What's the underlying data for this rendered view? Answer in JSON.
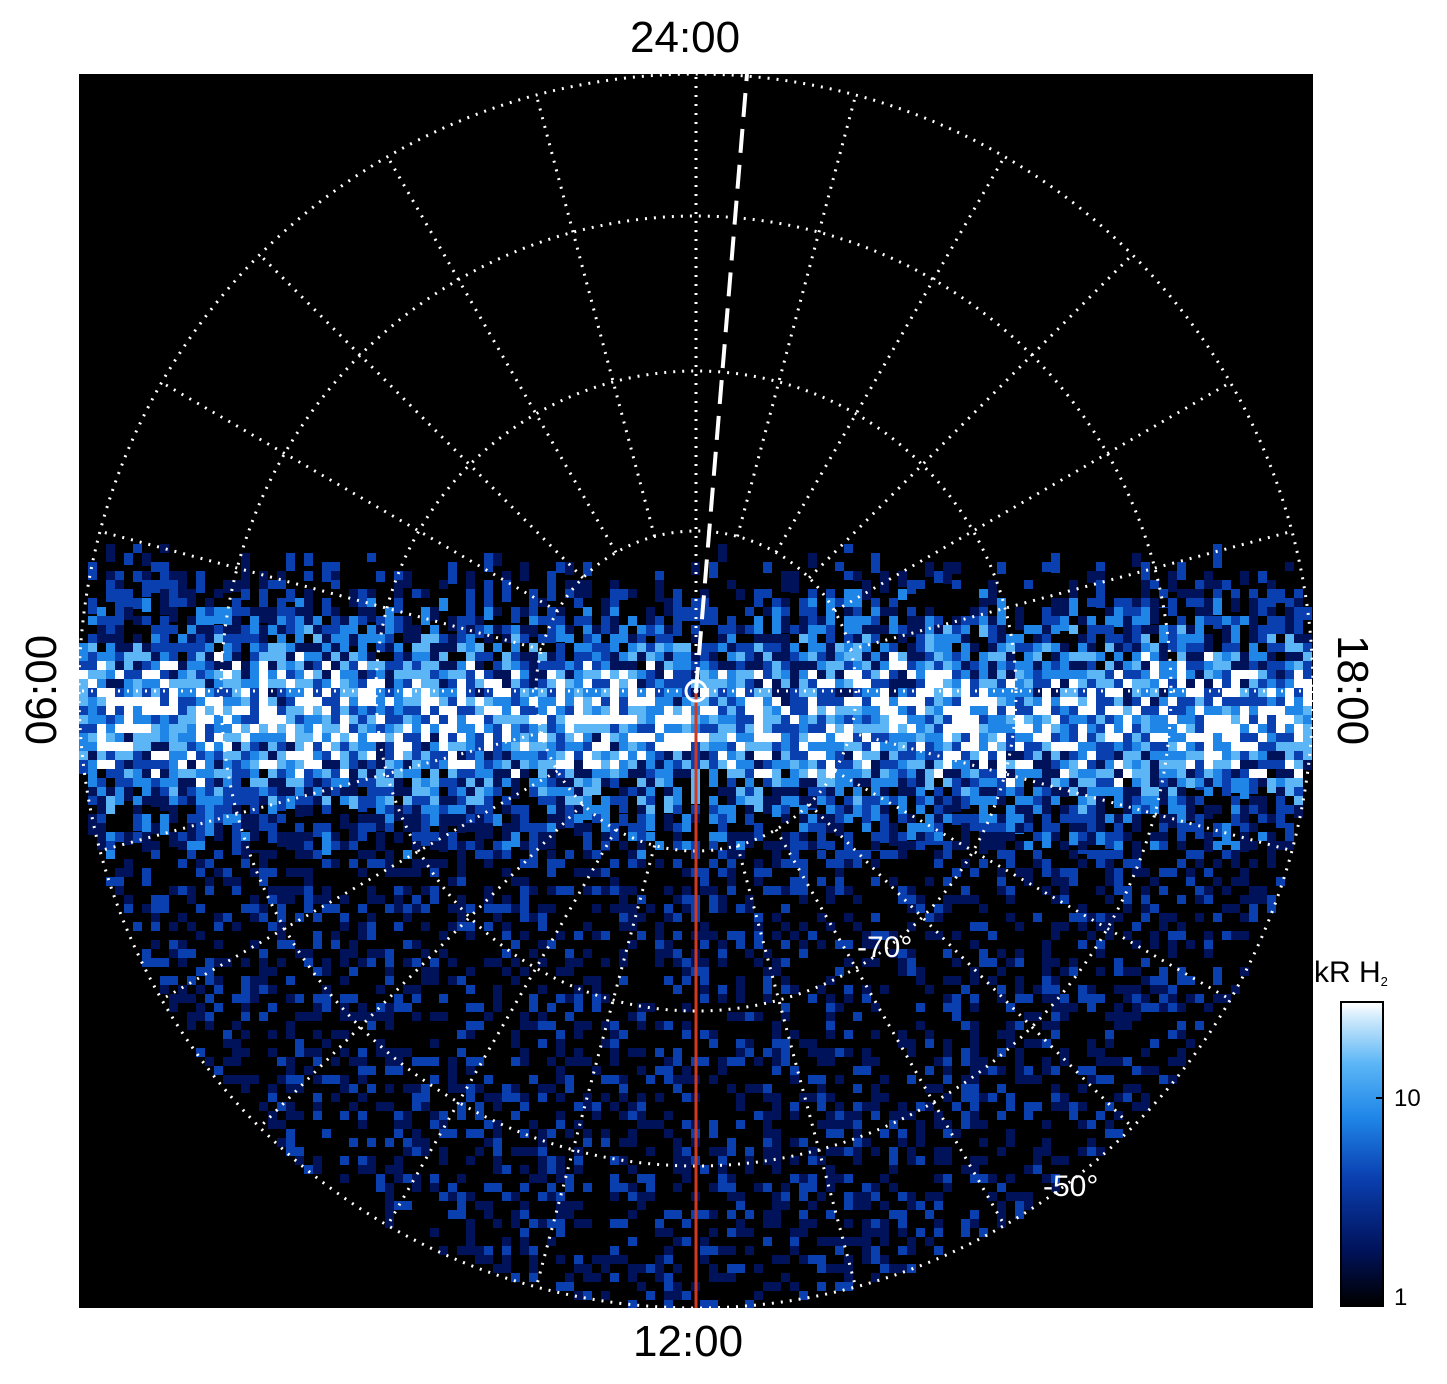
{
  "local_time_labels": {
    "top": "24:00",
    "bottom": "12:00",
    "left": "06:00",
    "right": "18:00"
  },
  "latitude_labels": [
    "-70°",
    "-50°"
  ],
  "colorbar": {
    "title": "kR H",
    "title_subscript": "2",
    "ticks": [
      "10",
      "1"
    ],
    "scale": "log",
    "colors": [
      "#000000",
      "#00125a",
      "#0a3fb0",
      "#1f86e8",
      "#5cb6f6",
      "#ffffff"
    ]
  },
  "colors": {
    "grid": "#ffffff",
    "noon_line": "#d2391e",
    "background": "#000000"
  }
}
